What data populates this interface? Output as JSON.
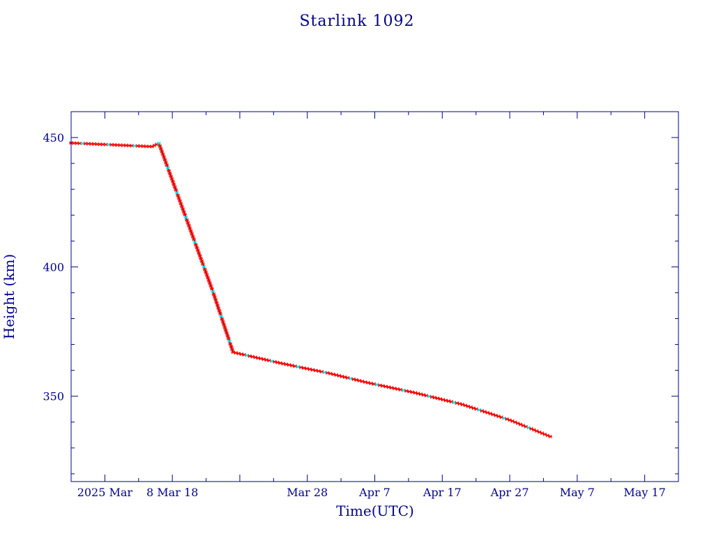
{
  "colors": {
    "axis": "#00008b",
    "text": "#00008b",
    "line": "#000000",
    "marker_primary": "#ff0000",
    "marker_secondary": "#00e5ee",
    "background": "#ffffff"
  },
  "chart_data": {
    "type": "line",
    "title": "Starlink 1092",
    "xlabel": "Time(UTC)",
    "ylabel": "Height (km)",
    "x_unit": "date",
    "xlim": [
      "2025-02-21",
      "2025-05-22"
    ],
    "ylim": [
      317,
      460
    ],
    "grid": false,
    "x_ticks": [
      {
        "date": "2025-02-26",
        "label": "2025 Mar"
      },
      {
        "date": "2025-03-08",
        "label": "8 Mar 18"
      },
      {
        "date": "2025-03-18",
        "label": ""
      },
      {
        "date": "2025-03-28",
        "label": "Mar 28"
      },
      {
        "date": "2025-04-07",
        "label": "Apr  7"
      },
      {
        "date": "2025-04-17",
        "label": "Apr 17"
      },
      {
        "date": "2025-04-27",
        "label": "Apr 27"
      },
      {
        "date": "2025-05-07",
        "label": "May  7"
      },
      {
        "date": "2025-05-17",
        "label": "May 17"
      }
    ],
    "x_minor_ticks": [
      "2025-03-03",
      "2025-03-13",
      "2025-03-23",
      "2025-04-02",
      "2025-04-12",
      "2025-04-22",
      "2025-05-02",
      "2025-05-12"
    ],
    "y_major_ticks": [
      350,
      400,
      450
    ],
    "y_minor_ticks": [
      320,
      330,
      340,
      360,
      370,
      380,
      390,
      410,
      420,
      430,
      440
    ],
    "series": [
      {
        "points": [
          [
            "2025-02-21",
            447.9
          ],
          [
            "2025-03-05",
            446.5
          ],
          [
            "2025-03-06",
            447.8
          ],
          [
            "2025-03-14",
            390.5
          ],
          [
            "2025-03-17",
            367.0
          ],
          [
            "2025-03-24",
            362.8
          ],
          [
            "2025-03-31",
            359.0
          ],
          [
            "2025-04-06",
            355.2
          ],
          [
            "2025-04-13",
            351.3
          ],
          [
            "2025-04-20",
            346.8
          ],
          [
            "2025-04-27",
            340.8
          ],
          [
            "2025-05-03",
            334.4
          ]
        ]
      }
    ]
  }
}
